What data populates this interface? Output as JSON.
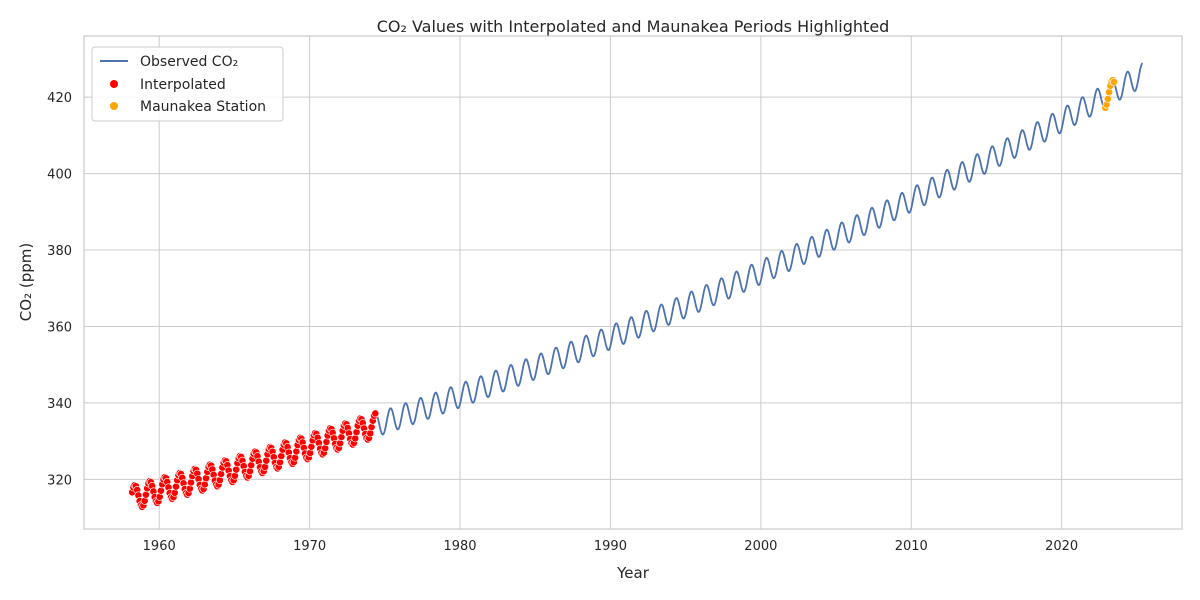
{
  "chart_data": {
    "type": "line",
    "title": "CO₂ Values with Interpolated and Maunakea Periods Highlighted",
    "xlabel": "Year",
    "ylabel": "CO₂ (ppm)",
    "xlim": [
      1955,
      2028
    ],
    "ylim": [
      307,
      436
    ],
    "xticks": [
      1960,
      1970,
      1980,
      1990,
      2000,
      2010,
      2020
    ],
    "yticks": [
      320,
      340,
      360,
      380,
      400,
      420
    ],
    "grid": true,
    "legend_position": "top-left",
    "line_color": "#4c72b0",
    "colors": {
      "interpolated": "#ff0000",
      "maunakea": "#ffa500",
      "grid": "#cccccc"
    },
    "legend": [
      {
        "label": "Observed CO₂",
        "marker": "line",
        "color": "#4c72b0"
      },
      {
        "label": "Interpolated",
        "marker": "dot",
        "color": "#ff0000"
      },
      {
        "label": "Maunakea Station",
        "marker": "dot",
        "color": "#ffa500"
      }
    ],
    "series": [
      {
        "name": "Observed CO₂",
        "kind": "line",
        "x_start": 1958.2,
        "x_end": 2025.4,
        "trend_start_ppm": 315.2,
        "trend_end_ppm": 425.9,
        "trend_curvature": 0.38,
        "seasonal_amplitude_ppm": 3.1,
        "peak_month": 5
      },
      {
        "name": "Interpolated",
        "kind": "scatter",
        "x_range": [
          1958.2,
          1974.4
        ],
        "color": "#ff0000"
      },
      {
        "name": "Maunakea Station",
        "kind": "scatter",
        "x_range": [
          2022.9,
          2023.5
        ],
        "color": "#ffa500"
      }
    ]
  }
}
